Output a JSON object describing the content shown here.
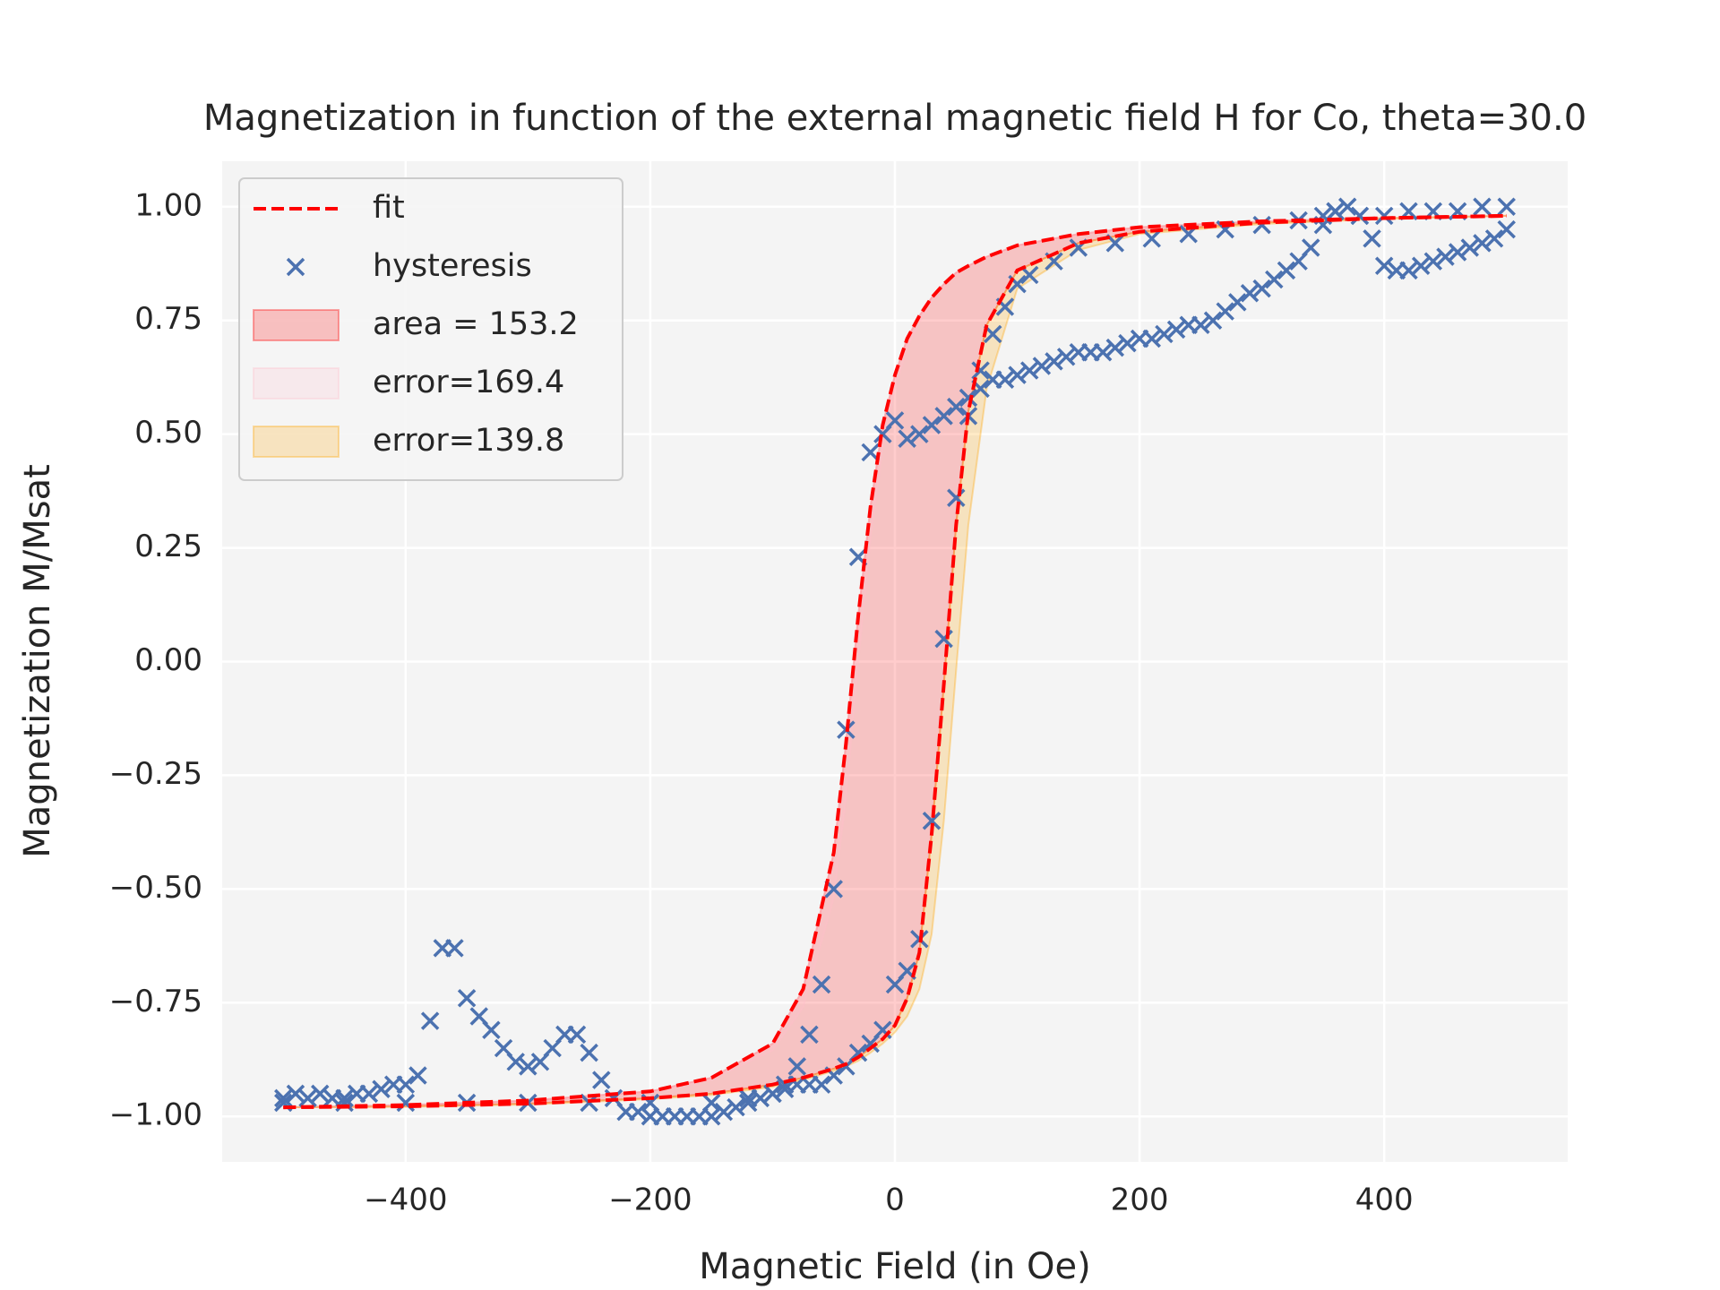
{
  "chart_data": {
    "type": "line",
    "title": "Magnetization in function of the external magnetic field H for Co, theta=30.0",
    "x_label": "Magnetic Field (in Oe)",
    "y_label": "Magnetization M/Msat",
    "xlim": [
      -550,
      550
    ],
    "ylim": [
      -1.1,
      1.1
    ],
    "xticks": [
      {
        "value": -400,
        "label": "−400"
      },
      {
        "value": -200,
        "label": "−200"
      },
      0,
      200,
      400
    ],
    "yticks": [
      {
        "value": -1,
        "label": "−1.00"
      },
      {
        "value": -0.75,
        "label": "−0.75"
      },
      {
        "value": -0.5,
        "label": "−0.50"
      },
      {
        "value": -0.25,
        "label": "−0.25"
      },
      {
        "value": 0,
        "label": "0.00"
      },
      {
        "value": 0.25,
        "label": "0.25"
      },
      {
        "value": 0.5,
        "label": "0.50"
      },
      {
        "value": 0.75,
        "label": "0.75"
      },
      {
        "value": 1,
        "label": "1.00"
      }
    ],
    "grid": true,
    "legend": "upper left",
    "series": [
      {
        "name": "fit",
        "type": "line",
        "color": "#ff0000",
        "x": [
          -500,
          -400,
          -300,
          -200,
          -150,
          -100,
          -75,
          -50,
          -40,
          -30,
          -20,
          -10,
          0,
          10,
          20,
          30,
          40,
          50,
          60,
          75,
          100,
          150,
          200,
          300,
          400,
          500
        ],
        "values": [
          -0.98,
          -0.975,
          -0.965,
          -0.945,
          -0.915,
          -0.84,
          -0.72,
          -0.42,
          -0.18,
          0.1,
          0.34,
          0.52,
          0.63,
          0.71,
          0.76,
          0.8,
          0.83,
          0.855,
          0.87,
          0.89,
          0.915,
          0.94,
          0.955,
          0.968,
          0.975,
          0.98
        ],
        "values2": [
          -0.98,
          -0.978,
          -0.972,
          -0.96,
          -0.95,
          -0.93,
          -0.915,
          -0.895,
          -0.885,
          -0.87,
          -0.85,
          -0.83,
          -0.8,
          -0.74,
          -0.64,
          -0.38,
          -0.05,
          0.3,
          0.55,
          0.74,
          0.86,
          0.92,
          0.945,
          0.965,
          0.975,
          0.98
        ]
      },
      {
        "name": "hysteresis",
        "type": "scatter",
        "color": "#4c72b0",
        "x": [
          -500,
          -490,
          -480,
          -470,
          -460,
          -450,
          -440,
          -430,
          -420,
          -410,
          -400,
          -390,
          -380,
          -370,
          -360,
          -350,
          -340,
          -330,
          -320,
          -310,
          -300,
          -290,
          -280,
          -270,
          -260,
          -250,
          -240,
          -230,
          -220,
          -210,
          -200,
          -190,
          -180,
          -170,
          -160,
          -150,
          -140,
          -130,
          -120,
          -110,
          -100,
          -90,
          -80,
          -70,
          -60,
          -50,
          -40,
          -30,
          -20,
          -10,
          0,
          10,
          20,
          30,
          40,
          50,
          60,
          70,
          80,
          90,
          100,
          110,
          120,
          130,
          140,
          150,
          160,
          170,
          180,
          190,
          200,
          210,
          220,
          230,
          240,
          250,
          260,
          270,
          280,
          290,
          300,
          310,
          320,
          330,
          340,
          350,
          360,
          370,
          380,
          390,
          400,
          410,
          420,
          430,
          440,
          450,
          460,
          470,
          480,
          490,
          500,
          500,
          480,
          460,
          440,
          420,
          400,
          380,
          360,
          350,
          330,
          300,
          270,
          240,
          210,
          180,
          150,
          130,
          110,
          100,
          90,
          80,
          70,
          60,
          50,
          40,
          30,
          20,
          10,
          0,
          -10,
          -20,
          -30,
          -40,
          -50,
          -60,
          -70,
          -80,
          -90,
          -100,
          -120,
          -150,
          -200,
          -250,
          -300,
          -350,
          -400,
          -450,
          -500
        ],
        "values": [
          -0.97,
          -0.95,
          -0.96,
          -0.95,
          -0.96,
          -0.96,
          -0.95,
          -0.95,
          -0.94,
          -0.93,
          -0.93,
          -0.91,
          -0.79,
          -0.63,
          -0.63,
          -0.74,
          -0.78,
          -0.81,
          -0.85,
          -0.88,
          -0.89,
          -0.88,
          -0.85,
          -0.82,
          -0.82,
          -0.86,
          -0.92,
          -0.96,
          -0.99,
          -0.99,
          -1.0,
          -1.0,
          -1.0,
          -1.0,
          -1.0,
          -1.0,
          -0.99,
          -0.98,
          -0.97,
          -0.96,
          -0.95,
          -0.94,
          -0.93,
          -0.93,
          -0.93,
          -0.91,
          -0.89,
          -0.86,
          -0.84,
          -0.81,
          -0.71,
          -0.68,
          -0.61,
          -0.35,
          0.05,
          0.36,
          0.54,
          0.6,
          0.62,
          0.62,
          0.63,
          0.64,
          0.65,
          0.66,
          0.67,
          0.68,
          0.68,
          0.68,
          0.69,
          0.7,
          0.71,
          0.71,
          0.72,
          0.73,
          0.74,
          0.74,
          0.75,
          0.77,
          0.79,
          0.81,
          0.82,
          0.84,
          0.86,
          0.88,
          0.91,
          0.96,
          0.99,
          1.0,
          0.98,
          0.93,
          0.87,
          0.86,
          0.86,
          0.87,
          0.88,
          0.89,
          0.9,
          0.91,
          0.92,
          0.93,
          0.95,
          1.0,
          1.0,
          0.99,
          0.99,
          0.99,
          0.98,
          0.98,
          0.99,
          0.98,
          0.97,
          0.96,
          0.95,
          0.94,
          0.93,
          0.92,
          0.91,
          0.88,
          0.85,
          0.83,
          0.78,
          0.72,
          0.64,
          0.58,
          0.56,
          0.54,
          0.52,
          0.5,
          0.49,
          0.53,
          0.5,
          0.46,
          0.23,
          -0.15,
          -0.5,
          -0.71,
          -0.82,
          -0.89,
          -0.93,
          -0.95,
          -0.96,
          -0.97,
          -0.97,
          -0.97,
          -0.97,
          -0.97,
          -0.97,
          -0.97,
          -0.96
        ]
      },
      {
        "name": "area = 153.2",
        "type": "area",
        "color": "#ff0000"
      },
      {
        "name": "error=169.4",
        "type": "band",
        "color": "#ffc0cb",
        "x": [
          -500,
          -400,
          -300,
          -200,
          -150,
          -100,
          -75,
          -50,
          -40,
          -30,
          -20,
          -10,
          0,
          10,
          20,
          30,
          40,
          50,
          60,
          75,
          100,
          150,
          200,
          300,
          400,
          500
        ],
        "values": [
          -0.98,
          -0.975,
          -0.965,
          -0.945,
          -0.915,
          -0.84,
          -0.72,
          -0.42,
          -0.18,
          0.1,
          0.34,
          0.52,
          0.63,
          0.71,
          0.76,
          0.8,
          0.83,
          0.855,
          0.87,
          0.89,
          0.915,
          0.94,
          0.955,
          0.968,
          0.975,
          0.98
        ],
        "values2": [
          -0.98,
          -0.976,
          -0.966,
          -0.947,
          -0.92,
          -0.855,
          -0.76,
          -0.52,
          -0.3,
          0.0,
          0.27,
          0.47,
          0.6,
          0.69,
          0.745,
          0.79,
          0.825,
          0.85,
          0.867,
          0.887,
          0.913,
          0.938,
          0.954,
          0.967,
          0.975,
          0.98
        ]
      },
      {
        "name": "error=139.8",
        "type": "band",
        "color": "#ffa500",
        "x": [
          -500,
          -400,
          -300,
          -200,
          -150,
          -100,
          -75,
          -50,
          -40,
          -30,
          -20,
          -10,
          0,
          10,
          20,
          30,
          40,
          50,
          60,
          75,
          100,
          150,
          200,
          300,
          400,
          500
        ],
        "values": [
          -0.98,
          -0.978,
          -0.972,
          -0.96,
          -0.95,
          -0.93,
          -0.915,
          -0.895,
          -0.885,
          -0.87,
          -0.85,
          -0.83,
          -0.8,
          -0.74,
          -0.64,
          -0.38,
          -0.05,
          0.3,
          0.55,
          0.74,
          0.86,
          0.92,
          0.945,
          0.965,
          0.975,
          0.98
        ],
        "values2": [
          -0.98,
          -0.979,
          -0.974,
          -0.962,
          -0.953,
          -0.935,
          -0.92,
          -0.9,
          -0.89,
          -0.878,
          -0.86,
          -0.84,
          -0.815,
          -0.78,
          -0.72,
          -0.6,
          -0.35,
          -0.02,
          0.3,
          0.6,
          0.82,
          0.905,
          0.94,
          0.962,
          0.973,
          0.98
        ]
      }
    ]
  }
}
